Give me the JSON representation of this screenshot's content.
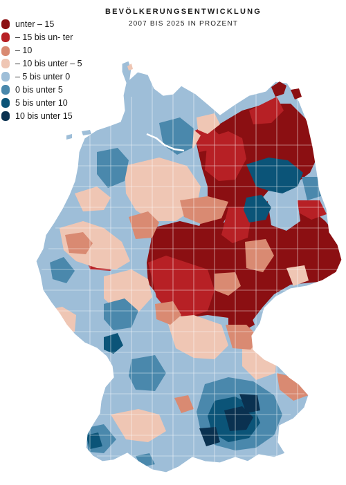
{
  "header": {
    "title": "BEVÖLKERUNGSENTWICKLUNG",
    "subtitle": "2007 BIS 2025 IN PROZENT"
  },
  "legend": {
    "items": [
      {
        "label": "unter – 15",
        "color": "#8b0f12"
      },
      {
        "label": "– 15 bis un- ter – 10",
        "color": "#b72025"
      },
      {
        "label": "– 10 bis unter – 5",
        "color": "#d98a72"
      },
      {
        "label": "– 5 bis unter 0",
        "color": "#efc6b4"
      },
      {
        "label": "0 bis unter 5",
        "color": "#9ebed8"
      },
      {
        "label": "5 bis unter 10",
        "color": "#4a88ac"
      },
      {
        "label": "10 bis unter 15",
        "color": "#0b5478"
      },
      {
        "label": "",
        "color": "#0a3150"
      }
    ]
  },
  "map": {
    "region": "Germany",
    "coast_color": "#ffffff",
    "water_color": "#ffffff"
  }
}
